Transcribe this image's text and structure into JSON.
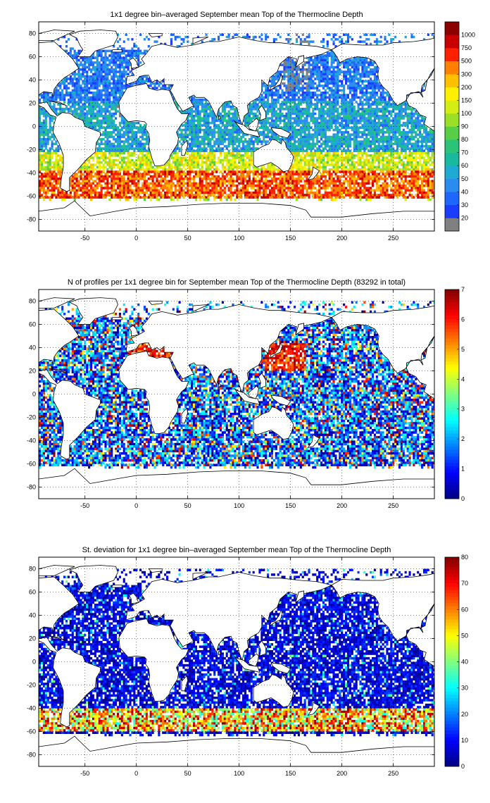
{
  "chart_data": [
    {
      "type": "heatmap",
      "title": "1x1 degree bin–averaged September mean Top of the Thermocline Depth",
      "xlim": [
        -95,
        290
      ],
      "ylim": [
        -90,
        90
      ],
      "xticks": [
        -50,
        0,
        50,
        100,
        150,
        200,
        250
      ],
      "yticks": [
        -80,
        -60,
        -40,
        -20,
        0,
        20,
        40,
        60,
        80
      ],
      "grid": true,
      "colorbar": {
        "position": "right",
        "scale": "categorical",
        "labels": [
          "20",
          "30",
          "40",
          "50",
          "60",
          "70",
          "80",
          "90",
          "100",
          "150",
          "200",
          "300",
          "500",
          "750",
          "1000"
        ],
        "colors": [
          "#808080",
          "#1a3cff",
          "#1f66ff",
          "#2a8cf0",
          "#1eaad2",
          "#19b9a0",
          "#2bc377",
          "#58cd46",
          "#9be028",
          "#d4ee14",
          "#fff000",
          "#ffc000",
          "#ff8000",
          "#ff2000",
          "#c80000",
          "#8c0000"
        ]
      },
      "field_description": "values mostly 20–100 m in tropics and subpolar North; 150–500 m in Southern Ocean band 40–60S; gray (<20) in Arctic margins and NW Pacific"
    },
    {
      "type": "heatmap",
      "title": "N of profiles per 1x1 degree bin for September mean Top of the Thermocline Depth  (83292 in total)",
      "xlim": [
        -95,
        290
      ],
      "ylim": [
        -90,
        90
      ],
      "xticks": [
        -50,
        0,
        50,
        100,
        150,
        200,
        250
      ],
      "yticks": [
        -80,
        -60,
        -40,
        -20,
        0,
        20,
        40,
        60,
        80
      ],
      "grid": true,
      "total_profiles": 83292,
      "colorbar": {
        "position": "right",
        "scale": "continuous",
        "range": [
          0,
          7
        ],
        "ticks": [
          0,
          1,
          2,
          3,
          4,
          5,
          6,
          7
        ],
        "colormap": "jet"
      }
    },
    {
      "type": "heatmap",
      "title": "St. deviation for 1x1 degree bin–averaged September mean Top of the Thermocline Depth",
      "xlim": [
        -95,
        290
      ],
      "ylim": [
        -90,
        90
      ],
      "xticks": [
        -50,
        0,
        50,
        100,
        150,
        200,
        250
      ],
      "yticks": [
        -80,
        -60,
        -40,
        -20,
        0,
        20,
        40,
        60,
        80
      ],
      "grid": true,
      "colorbar": {
        "position": "right",
        "scale": "continuous",
        "range": [
          0,
          80
        ],
        "ticks": [
          0,
          10,
          20,
          30,
          40,
          50,
          60,
          70,
          80
        ],
        "colormap": "jet"
      }
    }
  ]
}
